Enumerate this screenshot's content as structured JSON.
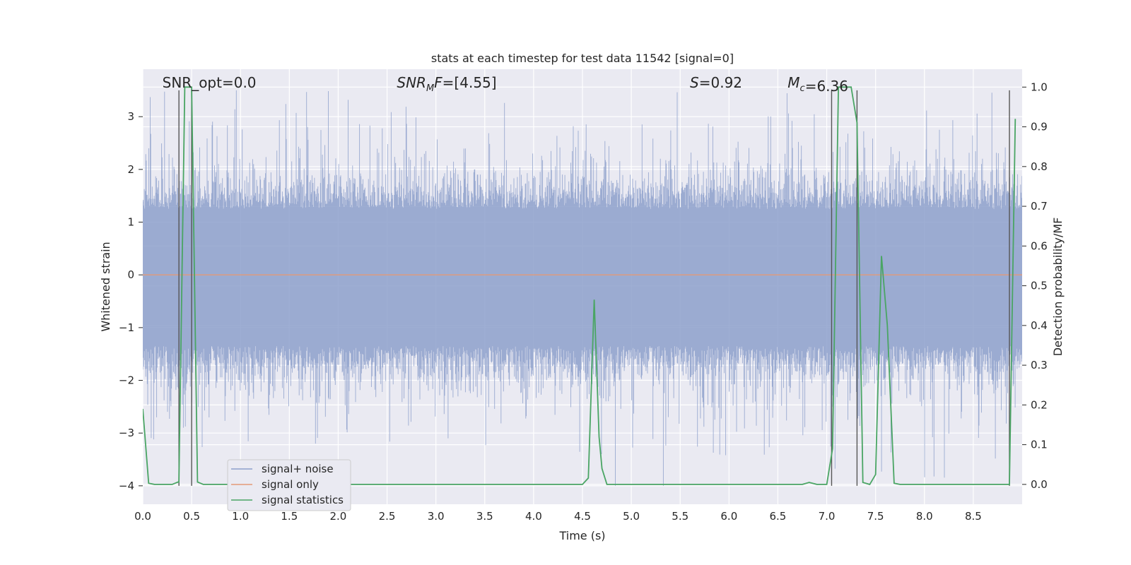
{
  "chart_data": {
    "type": "line",
    "title": "stats at each timestep for test data 11542 [signal=0]",
    "xlabel": "Time (s)",
    "ylabel": "Whitened strain",
    "ylabel_right": "Detection probability/MF",
    "xlim": [
      0.0,
      9.0
    ],
    "ylim": [
      -4.35,
      3.9
    ],
    "ylim_right": [
      -0.05,
      1.045
    ],
    "x_ticks": [
      "0.0",
      "0.5",
      "1.0",
      "1.5",
      "2.0",
      "2.5",
      "3.0",
      "3.5",
      "4.0",
      "4.5",
      "5.0",
      "5.5",
      "6.0",
      "6.5",
      "7.0",
      "7.5",
      "8.0",
      "8.5"
    ],
    "x_tick_values": [
      0.0,
      0.5,
      1.0,
      1.5,
      2.0,
      2.5,
      3.0,
      3.5,
      4.0,
      4.5,
      5.0,
      5.5,
      6.0,
      6.5,
      7.0,
      7.5,
      8.0,
      8.5
    ],
    "y_ticks": [
      "−4",
      "−3",
      "−2",
      "−1",
      "0",
      "1",
      "2",
      "3"
    ],
    "y_tick_values": [
      -4,
      -3,
      -2,
      -1,
      0,
      1,
      2,
      3
    ],
    "y_right_ticks": [
      "0.0",
      "0.1",
      "0.2",
      "0.3",
      "0.4",
      "0.5",
      "0.6",
      "0.7",
      "0.8",
      "0.9",
      "1.0"
    ],
    "y_right_tick_values": [
      0.0,
      0.1,
      0.2,
      0.3,
      0.4,
      0.5,
      0.6,
      0.7,
      0.8,
      0.9,
      1.0
    ],
    "annotations": [
      {
        "id": "snr-opt",
        "prefix": "SNR_opt",
        "sub": "",
        "value": "=0.0",
        "x": 0.2
      },
      {
        "id": "snr-mf",
        "prefix": "SNR",
        "sub": "M",
        "suffix": "F",
        "value": "=[4.55]",
        "x": 2.6
      },
      {
        "id": "s-stat",
        "prefix": "S",
        "sub": "",
        "value": "=0.92",
        "x": 5.6
      },
      {
        "id": "mc",
        "prefix": "M",
        "sub": "c",
        "value": "=6.36",
        "x": 6.6
      }
    ],
    "vertical_lines": [
      0.37,
      0.5,
      7.05,
      7.31,
      8.87
    ],
    "vertical_line_range": [
      -4.0,
      3.5
    ],
    "series": [
      {
        "name": "signal+ noise",
        "color": "#8da0cb",
        "kind": "noise",
        "amplitude_range": [
          -4.0,
          3.5
        ]
      },
      {
        "name": "signal only",
        "color": "#e39a77",
        "kind": "flat",
        "value": 0.0
      },
      {
        "name": "signal statistics",
        "color": "#4aa564",
        "kind": "probability",
        "x": [
          0.0,
          0.06,
          0.12,
          0.2,
          0.3,
          0.36,
          0.37,
          0.43,
          0.5,
          0.56,
          0.62,
          0.75,
          1.0,
          2.0,
          3.0,
          4.0,
          4.5,
          4.56,
          4.62,
          4.67,
          4.7,
          4.75,
          5.0,
          6.0,
          6.5,
          6.75,
          6.82,
          6.9,
          7.0,
          7.06,
          7.12,
          7.25,
          7.31,
          7.37,
          7.44,
          7.5,
          7.56,
          7.62,
          7.69,
          7.75,
          8.0,
          8.5,
          8.87,
          8.93
        ],
        "y": [
          0.19,
          0.003,
          0.0,
          0.0,
          0.0,
          0.006,
          0.006,
          1.0,
          1.0,
          0.006,
          0.0,
          0.0,
          0.0,
          0.0,
          0.0,
          0.0,
          0.0,
          0.016,
          0.465,
          0.12,
          0.04,
          0.0,
          0.0,
          0.0,
          0.0,
          0.0,
          0.005,
          0.0,
          0.0,
          0.09,
          1.0,
          1.0,
          0.91,
          0.005,
          0.0,
          0.025,
          0.575,
          0.4,
          0.003,
          0.0,
          0.0,
          0.0,
          0.0,
          0.92
        ]
      }
    ],
    "legend_placement": "lower-left",
    "grid": true
  }
}
